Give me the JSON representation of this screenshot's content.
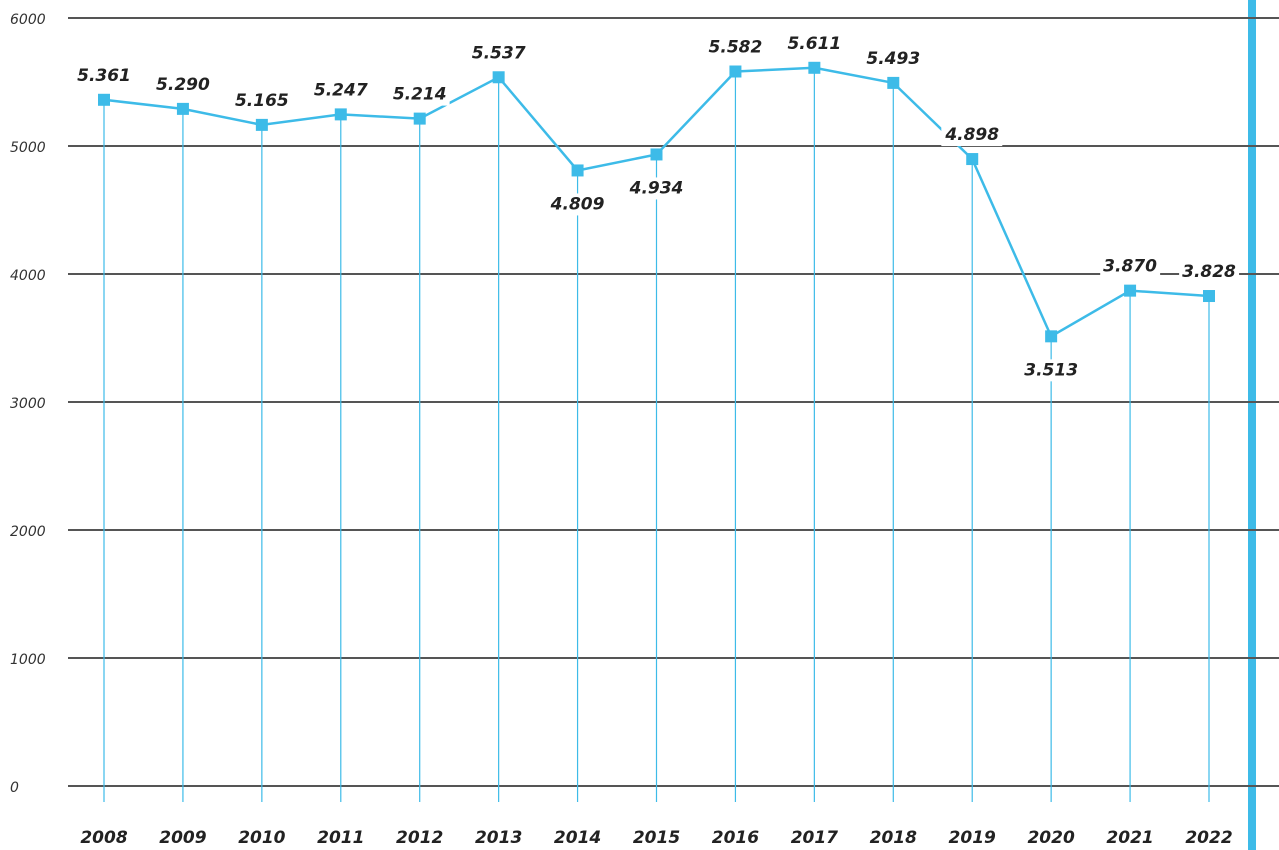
{
  "chart_data": {
    "type": "line",
    "categories": [
      "2008",
      "2009",
      "2010",
      "2011",
      "2012",
      "2013",
      "2014",
      "2015",
      "2016",
      "2017",
      "2018",
      "2019",
      "2020",
      "2021",
      "2022"
    ],
    "values": [
      5361,
      5290,
      5165,
      5247,
      5214,
      5537,
      4809,
      4934,
      5582,
      5611,
      5493,
      4898,
      3513,
      3870,
      3828
    ],
    "value_labels": [
      "5.361",
      "5.290",
      "5.165",
      "5.247",
      "5.214",
      "5.537",
      "4.809",
      "4.934",
      "5.582",
      "5.611",
      "5.493",
      "4.898",
      "3.513",
      "3.870",
      "3.828"
    ],
    "color": "#3dbbe8",
    "ylim": [
      0,
      6000
    ],
    "yticks": [
      0,
      1000,
      2000,
      3000,
      4000,
      5000,
      6000
    ],
    "grid": true
  }
}
